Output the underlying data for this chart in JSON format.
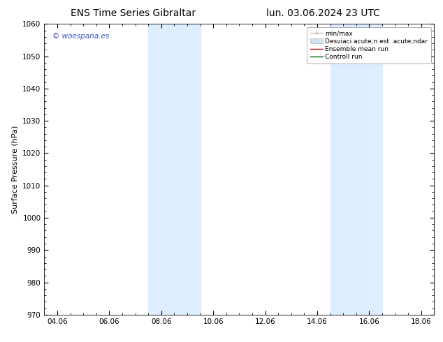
{
  "title_left": "ENS Time Series Gibraltar",
  "title_right": "lun. 03.06.2024 23 UTC",
  "ylabel": "Surface Pressure (hPa)",
  "ylim": [
    970,
    1060
  ],
  "yticks": [
    970,
    980,
    990,
    1000,
    1010,
    1020,
    1030,
    1040,
    1050,
    1060
  ],
  "xtick_labels": [
    "04.06",
    "06.06",
    "08.06",
    "10.06",
    "12.06",
    "14.06",
    "16.06",
    "18.06"
  ],
  "xtick_positions": [
    0,
    2,
    4,
    6,
    8,
    10,
    12,
    14
  ],
  "xmin": -0.5,
  "xmax": 14.5,
  "shaded_regions": [
    {
      "xstart": 3.5,
      "xend": 5.5,
      "color": "#ddeeff"
    },
    {
      "xstart": 10.5,
      "xend": 12.5,
      "color": "#ddeeff"
    }
  ],
  "watermark_text": "© woespana.es",
  "watermark_color": "#3355bb",
  "background_color": "#ffffff",
  "title_fontsize": 10,
  "tick_fontsize": 7.5,
  "ylabel_fontsize": 8,
  "legend_fontsize": 6.5,
  "watermark_fontsize": 7.5
}
